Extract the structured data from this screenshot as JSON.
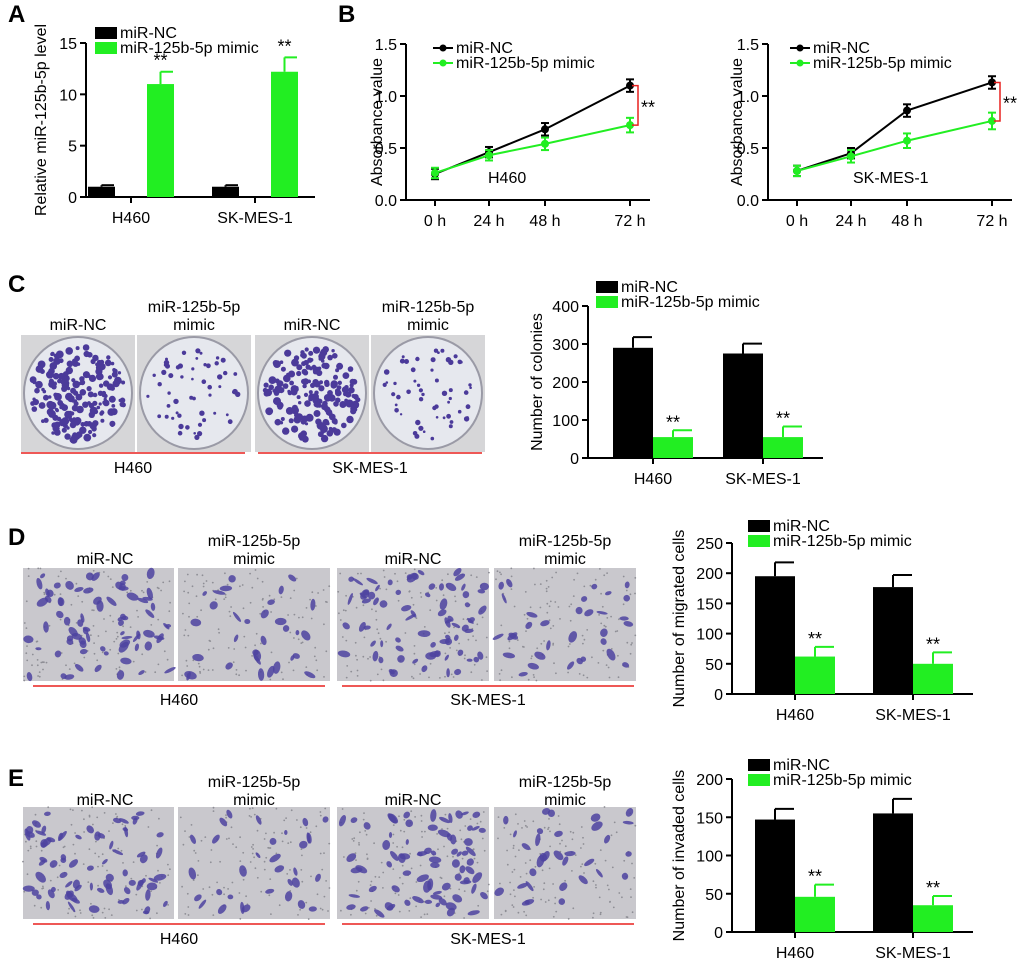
{
  "colors": {
    "nc": "#000000",
    "mimic": "#22ee22",
    "sig_bracket": "#e8211f",
    "underline": "#e8211f",
    "plate_bg": "#d6d6d8",
    "plate_dish": "#e6e8ee",
    "colony": "#4b3a9a",
    "micro_bg": "#c9c8cd",
    "cell": "#4d43a0"
  },
  "panels": {
    "A": "A",
    "B": "B",
    "C": "C",
    "D": "D",
    "E": "E"
  },
  "images": {
    "C": {
      "labels": {
        "nc": "miR-NC",
        "mimic_line1": "miR-125b-5p",
        "mimic_line2": "mimic"
      },
      "groups": [
        "H460",
        "SK-MES-1"
      ]
    },
    "D": {
      "labels": {
        "nc": "miR-NC",
        "mimic_line1": "miR-125b-5p",
        "mimic_line2": "mimic"
      },
      "groups": [
        "H460",
        "SK-MES-1"
      ]
    },
    "E": {
      "labels": {
        "nc": "miR-NC",
        "mimic_line1": "miR-125b-5p",
        "mimic_line2": "mimic"
      },
      "groups": [
        "H460",
        "SK-MES-1"
      ]
    }
  },
  "chart_data": [
    {
      "id": "A",
      "type": "bar",
      "ylabel": "Relative miR-125b-5p level",
      "categories": [
        "H460",
        "SK-MES-1"
      ],
      "ylim": [
        0,
        15
      ],
      "yticks": [
        0,
        5,
        10,
        15
      ],
      "legend": [
        "miR-NC",
        "miR-125b-5p mimic"
      ],
      "series": [
        {
          "name": "miR-NC",
          "values": [
            1.0,
            1.0
          ],
          "errors": [
            0.15,
            0.15
          ]
        },
        {
          "name": "miR-125b-5p mimic",
          "values": [
            11.0,
            12.2
          ],
          "errors": [
            1.2,
            1.4
          ]
        }
      ],
      "annotations": [
        "**",
        "**"
      ]
    },
    {
      "id": "B1",
      "type": "line",
      "ylabel": "Absorbance value",
      "inner_label": "H460",
      "x": [
        "0 h",
        "24 h",
        "48 h",
        "72 h"
      ],
      "ylim": [
        0,
        1.5
      ],
      "yticks": [
        0.0,
        0.5,
        1.0,
        1.5
      ],
      "legend": [
        "miR-NC",
        "miR-125b-5p mimic"
      ],
      "series": [
        {
          "name": "miR-NC",
          "values": [
            0.25,
            0.46,
            0.68,
            1.1
          ],
          "errors": [
            0.05,
            0.05,
            0.06,
            0.06
          ]
        },
        {
          "name": "miR-125b-5p mimic",
          "values": [
            0.26,
            0.43,
            0.54,
            0.72
          ],
          "errors": [
            0.05,
            0.05,
            0.06,
            0.07
          ]
        }
      ],
      "annotation": "**"
    },
    {
      "id": "B2",
      "type": "line",
      "ylabel": "Absorbance value",
      "inner_label": "SK-MES-1",
      "x": [
        "0 h",
        "24 h",
        "48 h",
        "72 h"
      ],
      "ylim": [
        0,
        1.5
      ],
      "yticks": [
        0.0,
        0.5,
        1.0,
        1.5
      ],
      "legend": [
        "miR-NC",
        "miR-125b-5p mimic"
      ],
      "series": [
        {
          "name": "miR-NC",
          "values": [
            0.28,
            0.45,
            0.86,
            1.13
          ],
          "errors": [
            0.05,
            0.05,
            0.06,
            0.06
          ]
        },
        {
          "name": "miR-125b-5p mimic",
          "values": [
            0.28,
            0.42,
            0.57,
            0.76
          ],
          "errors": [
            0.05,
            0.06,
            0.07,
            0.08
          ]
        }
      ],
      "annotation": "**"
    },
    {
      "id": "C",
      "type": "bar",
      "ylabel": "Number of colonies",
      "categories": [
        "H460",
        "SK-MES-1"
      ],
      "ylim": [
        0,
        400
      ],
      "yticks": [
        0,
        100,
        200,
        300,
        400
      ],
      "legend": [
        "miR-NC",
        "miR-125b-5p mimic"
      ],
      "series": [
        {
          "name": "miR-NC",
          "values": [
            290,
            275
          ],
          "errors": [
            28,
            26
          ]
        },
        {
          "name": "miR-125b-5p mimic",
          "values": [
            55,
            55
          ],
          "errors": [
            18,
            28
          ]
        }
      ],
      "annotations": [
        "**",
        "**"
      ]
    },
    {
      "id": "D",
      "type": "bar",
      "ylabel": "Number of migrated cells",
      "categories": [
        "H460",
        "SK-MES-1"
      ],
      "ylim": [
        0,
        250
      ],
      "yticks": [
        0,
        50,
        100,
        150,
        200,
        250
      ],
      "legend": [
        "miR-NC",
        "miR-125b-5p mimic"
      ],
      "series": [
        {
          "name": "miR-NC",
          "values": [
            195,
            177
          ],
          "errors": [
            23,
            20
          ]
        },
        {
          "name": "miR-125b-5p mimic",
          "values": [
            62,
            50
          ],
          "errors": [
            16,
            19
          ]
        }
      ],
      "annotations": [
        "**",
        "**"
      ]
    },
    {
      "id": "E",
      "type": "bar",
      "ylabel": "Number of invaded cells",
      "categories": [
        "H460",
        "SK-MES-1"
      ],
      "ylim": [
        0,
        200
      ],
      "yticks": [
        0,
        50,
        100,
        150,
        200
      ],
      "legend": [
        "miR-NC",
        "miR-125b-5p mimic"
      ],
      "series": [
        {
          "name": "miR-NC",
          "values": [
            147,
            155
          ],
          "errors": [
            14,
            19
          ]
        },
        {
          "name": "miR-125b-5p mimic",
          "values": [
            46,
            35
          ],
          "errors": [
            16,
            12
          ]
        }
      ],
      "annotations": [
        "**",
        "**"
      ]
    }
  ]
}
